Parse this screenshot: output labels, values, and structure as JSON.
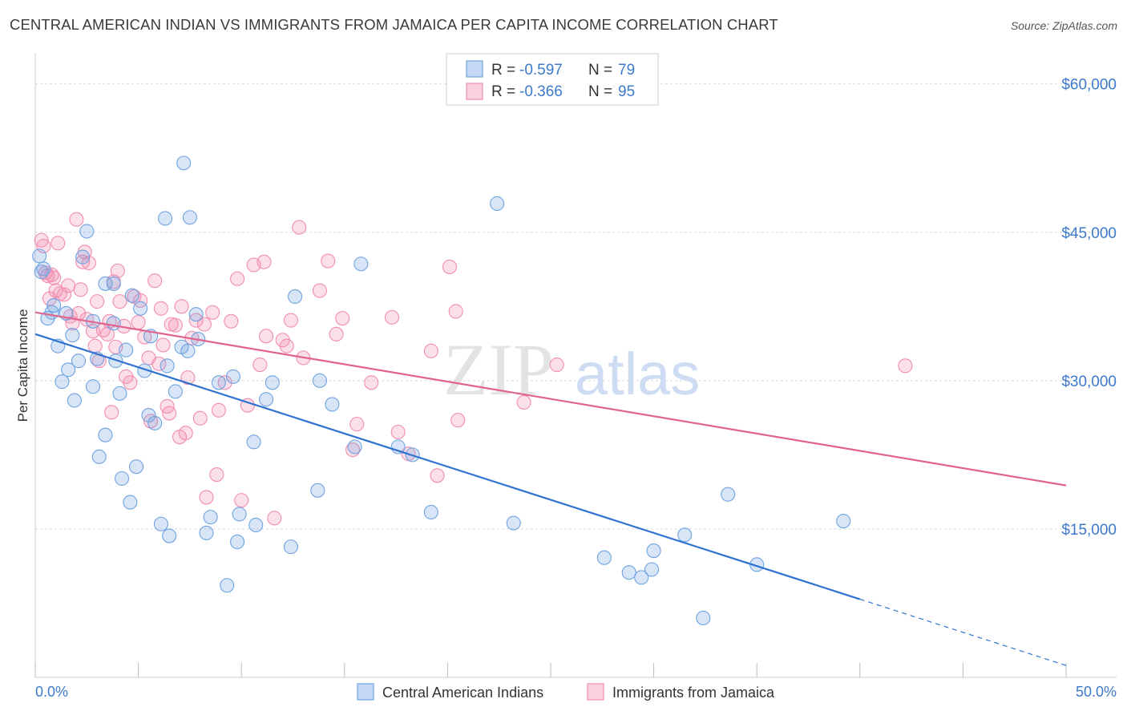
{
  "header": {
    "title": "CENTRAL AMERICAN INDIAN VS IMMIGRANTS FROM JAMAICA PER CAPITA INCOME CORRELATION CHART",
    "source": "Source: ZipAtlas.com"
  },
  "legend_box": {
    "rows": [
      {
        "r_label": "R =",
        "r_value": "-0.597",
        "n_label": "N =",
        "n_value": "79"
      },
      {
        "r_label": "R =",
        "r_value": "-0.366",
        "n_label": "N =",
        "n_value": "95"
      }
    ]
  },
  "watermark": {
    "zip": "ZIP",
    "atlas": "atlas"
  },
  "colors": {
    "blue": "#6fa3e0",
    "blue_line": "#2f72d0",
    "pink": "#f28db0",
    "pink_line": "#e0648f",
    "tick_text": "#3d79cc",
    "grid": "#d9d9d9"
  },
  "chart_data": {
    "type": "scatter",
    "title": "CENTRAL AMERICAN INDIAN VS IMMIGRANTS FROM JAMAICA PER CAPITA INCOME CORRELATION CHART",
    "xlabel": "",
    "ylabel": "Per Capita Income",
    "xlim": [
      0,
      50
    ],
    "ylim": [
      0,
      62000
    ],
    "x_tick_labels": {
      "left": "0.0%",
      "right": "50.0%"
    },
    "y_ticks": [
      {
        "value": 15000,
        "label": "$15,000"
      },
      {
        "value": 30000,
        "label": "$30,000"
      },
      {
        "value": 45000,
        "label": "$45,000"
      },
      {
        "value": 60000,
        "label": "$60,000"
      }
    ],
    "grid": true,
    "legend_position": "bottom",
    "series": [
      {
        "name": "Central American Indians",
        "color": "#6fa3e0",
        "r": -0.597,
        "n": 79,
        "trend": {
          "x0": 0,
          "y0": 34700,
          "x1": 40,
          "y1": 7900,
          "dash_to_x": 50,
          "dash_to_y": 1200
        },
        "points": [
          [
            0.2,
            42600
          ],
          [
            0.3,
            41000
          ],
          [
            0.4,
            41300
          ],
          [
            0.6,
            36300
          ],
          [
            0.8,
            36900
          ],
          [
            0.9,
            37600
          ],
          [
            1.1,
            33500
          ],
          [
            1.3,
            29900
          ],
          [
            1.5,
            36800
          ],
          [
            1.6,
            31100
          ],
          [
            1.8,
            34600
          ],
          [
            1.9,
            28000
          ],
          [
            2.1,
            32000
          ],
          [
            2.3,
            42500
          ],
          [
            2.5,
            45100
          ],
          [
            2.8,
            36000
          ],
          [
            2.8,
            29400
          ],
          [
            3.0,
            32200
          ],
          [
            3.1,
            22300
          ],
          [
            3.4,
            24500
          ],
          [
            3.4,
            39800
          ],
          [
            3.8,
            39800
          ],
          [
            3.8,
            35800
          ],
          [
            3.9,
            32000
          ],
          [
            4.1,
            28700
          ],
          [
            4.2,
            20100
          ],
          [
            4.4,
            33100
          ],
          [
            4.6,
            17700
          ],
          [
            4.7,
            38600
          ],
          [
            4.9,
            21300
          ],
          [
            5.1,
            37300
          ],
          [
            5.3,
            31000
          ],
          [
            5.5,
            26500
          ],
          [
            5.6,
            34500
          ],
          [
            5.8,
            25700
          ],
          [
            6.1,
            15500
          ],
          [
            6.3,
            46400
          ],
          [
            6.4,
            31500
          ],
          [
            6.5,
            14300
          ],
          [
            6.8,
            28900
          ],
          [
            7.1,
            33400
          ],
          [
            7.2,
            52000
          ],
          [
            7.4,
            33000
          ],
          [
            7.5,
            46500
          ],
          [
            7.8,
            36700
          ],
          [
            7.9,
            34200
          ],
          [
            8.3,
            14600
          ],
          [
            8.5,
            16200
          ],
          [
            8.9,
            29800
          ],
          [
            9.3,
            9300
          ],
          [
            9.6,
            30400
          ],
          [
            9.8,
            13700
          ],
          [
            9.9,
            16500
          ],
          [
            10.6,
            23800
          ],
          [
            10.7,
            15400
          ],
          [
            11.2,
            28100
          ],
          [
            11.5,
            29800
          ],
          [
            12.4,
            13200
          ],
          [
            12.6,
            38500
          ],
          [
            13.7,
            18900
          ],
          [
            13.8,
            30000
          ],
          [
            14.4,
            27600
          ],
          [
            15.5,
            23300
          ],
          [
            15.8,
            41800
          ],
          [
            17.6,
            23300
          ],
          [
            18.3,
            22500
          ],
          [
            19.2,
            16700
          ],
          [
            22.4,
            47900
          ],
          [
            23.2,
            15600
          ],
          [
            27.6,
            12100
          ],
          [
            28.8,
            10600
          ],
          [
            29.4,
            10100
          ],
          [
            29.9,
            10900
          ],
          [
            30.0,
            12800
          ],
          [
            31.5,
            14400
          ],
          [
            32.4,
            6000
          ],
          [
            33.6,
            18500
          ],
          [
            35.0,
            11400
          ],
          [
            39.2,
            15800
          ]
        ]
      },
      {
        "name": "Immigrants from Jamaica",
        "color": "#f28db0",
        "r": -0.366,
        "n": 95,
        "trend": {
          "x0": 0,
          "y0": 36900,
          "x1": 50,
          "y1": 19400
        },
        "points": [
          [
            0.3,
            44200
          ],
          [
            0.4,
            43600
          ],
          [
            0.5,
            40900
          ],
          [
            0.6,
            40600
          ],
          [
            0.7,
            38300
          ],
          [
            0.8,
            40700
          ],
          [
            0.9,
            40400
          ],
          [
            1.0,
            39100
          ],
          [
            1.1,
            43900
          ],
          [
            1.2,
            38800
          ],
          [
            1.4,
            38700
          ],
          [
            1.6,
            39600
          ],
          [
            1.7,
            36500
          ],
          [
            1.8,
            35800
          ],
          [
            2.0,
            46300
          ],
          [
            2.1,
            36800
          ],
          [
            2.2,
            39200
          ],
          [
            2.3,
            42000
          ],
          [
            2.4,
            43000
          ],
          [
            2.5,
            36200
          ],
          [
            2.6,
            41900
          ],
          [
            2.8,
            35000
          ],
          [
            2.9,
            33500
          ],
          [
            3.0,
            38000
          ],
          [
            3.1,
            32000
          ],
          [
            3.3,
            35100
          ],
          [
            3.5,
            34700
          ],
          [
            3.6,
            36000
          ],
          [
            3.8,
            40000
          ],
          [
            3.9,
            33400
          ],
          [
            4.0,
            41100
          ],
          [
            4.1,
            38000
          ],
          [
            4.3,
            35500
          ],
          [
            4.4,
            30400
          ],
          [
            4.6,
            29800
          ],
          [
            4.8,
            38500
          ],
          [
            5.0,
            35900
          ],
          [
            5.1,
            38100
          ],
          [
            5.3,
            34400
          ],
          [
            5.5,
            32300
          ],
          [
            5.6,
            25900
          ],
          [
            5.8,
            40100
          ],
          [
            6.0,
            31700
          ],
          [
            6.1,
            37300
          ],
          [
            6.2,
            33600
          ],
          [
            6.4,
            27400
          ],
          [
            6.6,
            35700
          ],
          [
            6.8,
            35600
          ],
          [
            7.0,
            24300
          ],
          [
            7.1,
            37500
          ],
          [
            7.3,
            24700
          ],
          [
            7.4,
            30300
          ],
          [
            7.6,
            34300
          ],
          [
            7.8,
            36100
          ],
          [
            8.0,
            26200
          ],
          [
            8.2,
            35700
          ],
          [
            8.6,
            36900
          ],
          [
            8.8,
            20500
          ],
          [
            8.9,
            27000
          ],
          [
            9.2,
            29800
          ],
          [
            9.5,
            36000
          ],
          [
            9.8,
            40300
          ],
          [
            10.0,
            17900
          ],
          [
            10.3,
            27500
          ],
          [
            10.6,
            41700
          ],
          [
            10.9,
            31600
          ],
          [
            11.2,
            34500
          ],
          [
            11.6,
            16100
          ],
          [
            12.0,
            34100
          ],
          [
            12.2,
            33500
          ],
          [
            12.4,
            36100
          ],
          [
            13.0,
            32300
          ],
          [
            13.8,
            39100
          ],
          [
            14.2,
            42100
          ],
          [
            14.6,
            34700
          ],
          [
            14.9,
            36300
          ],
          [
            15.4,
            23000
          ],
          [
            15.6,
            25600
          ],
          [
            16.3,
            29800
          ],
          [
            17.3,
            36400
          ],
          [
            17.6,
            24800
          ],
          [
            18.1,
            22600
          ],
          [
            19.2,
            33000
          ],
          [
            19.5,
            20400
          ],
          [
            20.1,
            41500
          ],
          [
            20.4,
            37000
          ],
          [
            20.5,
            26000
          ],
          [
            23.7,
            27800
          ],
          [
            25.3,
            31600
          ],
          [
            42.2,
            31500
          ],
          [
            6.5,
            26700
          ],
          [
            3.7,
            26800
          ],
          [
            11.1,
            42000
          ],
          [
            8.3,
            18200
          ],
          [
            12.8,
            45500
          ]
        ]
      }
    ]
  }
}
